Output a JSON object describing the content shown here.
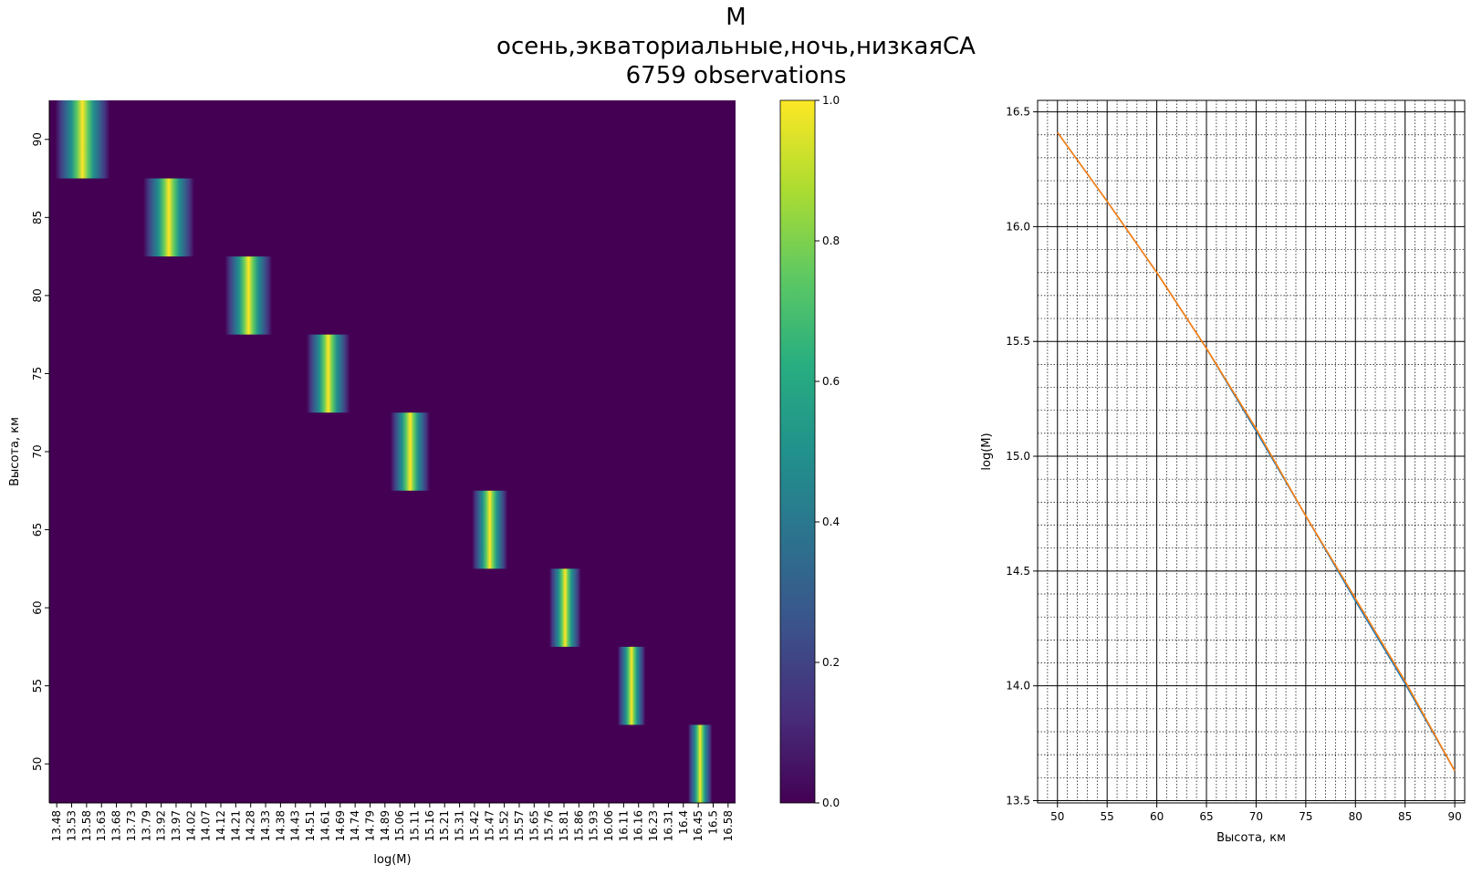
{
  "title": {
    "line1": "M",
    "line2": "осень,экваториальные,ночь,низкаяСА",
    "line3": "6759 observations"
  },
  "chart_data": [
    {
      "type": "heatmap",
      "xlabel": "log(M)",
      "ylabel": "Высота, км",
      "x_ticks": [
        "13.48",
        "13.53",
        "13.58",
        "13.63",
        "13.68",
        "13.73",
        "13.79",
        "13.92",
        "13.97",
        "14.02",
        "14.07",
        "14.12",
        "14.21",
        "14.28",
        "14.33",
        "14.38",
        "14.43",
        "14.51",
        "14.61",
        "14.69",
        "14.74",
        "14.79",
        "14.89",
        "15.06",
        "15.11",
        "15.16",
        "15.21",
        "15.31",
        "15.42",
        "15.47",
        "15.52",
        "15.57",
        "15.65",
        "15.76",
        "15.81",
        "15.86",
        "15.93",
        "16.06",
        "16.11",
        "16.16",
        "16.23",
        "16.31",
        "16.4",
        "16.45",
        "16.5",
        "16.58"
      ],
      "y_ticks": [
        "90",
        "85",
        "80",
        "75",
        "70",
        "65",
        "60",
        "55",
        "50"
      ],
      "rows": [
        90,
        85,
        80,
        75,
        70,
        65,
        60,
        55,
        50
      ],
      "peak_logM": [
        13.63,
        14.02,
        14.38,
        14.74,
        15.11,
        15.47,
        15.81,
        16.11,
        16.42
      ],
      "peak_value": 1.0,
      "xlim": [
        13.48,
        16.58
      ],
      "colormap": "viridis",
      "colorbar": {
        "min": 0.0,
        "max": 1.0,
        "ticks": [
          "0.0",
          "0.2",
          "0.4",
          "0.6",
          "0.8",
          "1.0"
        ]
      }
    },
    {
      "type": "line",
      "xlabel": "Высота, км",
      "ylabel": "log(M)",
      "x": [
        50,
        55,
        60,
        65,
        70,
        75,
        80,
        85,
        90
      ],
      "series": [
        {
          "color": "#1f77b4",
          "values": [
            16.41,
            16.11,
            15.8,
            15.47,
            15.11,
            14.74,
            14.37,
            14.01,
            13.63
          ]
        },
        {
          "color": "#ff7f0e",
          "values": [
            16.41,
            16.11,
            15.8,
            15.47,
            15.12,
            14.74,
            14.38,
            14.02,
            13.63
          ]
        }
      ],
      "xlim": [
        48,
        91
      ],
      "ylim": [
        13.49,
        16.55
      ],
      "x_ticks": [
        "50",
        "55",
        "60",
        "65",
        "70",
        "75",
        "80",
        "85",
        "90"
      ],
      "y_ticks": [
        "13.5",
        "14.0",
        "14.5",
        "15.0",
        "15.5",
        "16.0",
        "16.5"
      ],
      "grid": true
    }
  ]
}
